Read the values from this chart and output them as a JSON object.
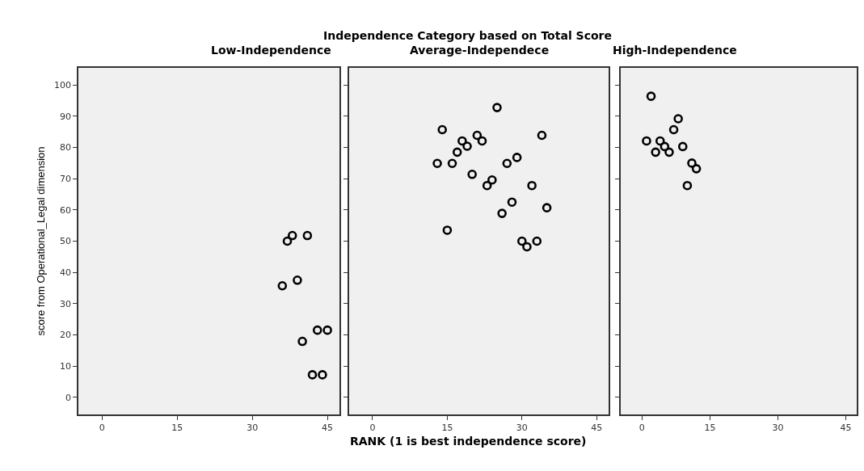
{
  "chart_data": [
    {
      "type": "scatter",
      "title": "Low-Independence",
      "ylabel": "score from Operational_Legal dimension",
      "x": [
        37,
        38,
        41,
        36,
        39,
        43,
        45,
        40,
        42,
        44
      ],
      "values": [
        50.0,
        51.8,
        51.8,
        35.7,
        37.5,
        21.5,
        21.5,
        17.9,
        7.2,
        7.2
      ],
      "color": "#000000",
      "marker": "circle",
      "xlim": [
        -4.7,
        47.4
      ],
      "xticks": [
        0,
        15,
        30,
        45
      ],
      "ylim": [
        -5.5,
        105.5
      ],
      "yticks": [
        0,
        10,
        20,
        30,
        40,
        50,
        60,
        70,
        80,
        90,
        100
      ],
      "grid": false
    },
    {
      "type": "scatter",
      "title": "Average-Independece",
      "xlabel": "RANK (1 is best independence score)",
      "annotations": [
        "Independence Category based on Total Score"
      ],
      "x": [
        25,
        14,
        21,
        34,
        18,
        22,
        19,
        17,
        29,
        13,
        16,
        27,
        20,
        24,
        23,
        32,
        28,
        35,
        26,
        15,
        30,
        33,
        31
      ],
      "values": [
        92.8,
        85.7,
        83.9,
        83.9,
        82.1,
        82.1,
        80.4,
        78.5,
        76.8,
        74.9,
        74.9,
        74.9,
        71.4,
        69.6,
        67.8,
        67.8,
        62.5,
        60.7,
        58.9,
        53.5,
        50.0,
        50.0,
        48.2
      ],
      "color": "#000000",
      "marker": "circle",
      "xlim": [
        -4.7,
        47.4
      ],
      "xticks": [
        0,
        15,
        30,
        45
      ],
      "ylim": [
        -5.5,
        105.5
      ],
      "yticks": [
        0,
        10,
        20,
        30,
        40,
        50,
        60,
        70,
        80,
        90,
        100
      ],
      "tick_labels": "x",
      "grid": false
    },
    {
      "type": "scatter",
      "title": "High-Independence",
      "x": [
        2,
        8,
        7,
        1,
        4,
        5,
        3,
        6,
        9,
        11,
        12,
        10
      ],
      "values": [
        96.4,
        89.2,
        85.7,
        82.1,
        82.1,
        80.3,
        78.5,
        78.5,
        80.3,
        75.0,
        73.2,
        67.8
      ],
      "color": "#000000",
      "marker": "circle",
      "xlim": [
        -4.7,
        47.4
      ],
      "xticks": [
        0,
        15,
        30,
        45
      ],
      "ylim": [
        -5.5,
        105.5
      ],
      "yticks": [
        0,
        10,
        20,
        30,
        40,
        50,
        60,
        70,
        80,
        90,
        100
      ],
      "tick_labels": "x",
      "grid": false
    }
  ]
}
